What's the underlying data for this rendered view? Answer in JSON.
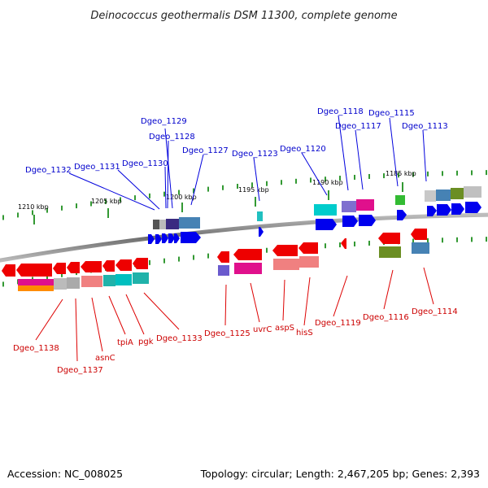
{
  "title": "Deinococcus geothermalis DSM 11300, complete genome",
  "footer": {
    "accession": "Accession: NC_008025",
    "summary": "Topology: circular; Length: 2,467,205 bp; Genes: 2,393"
  },
  "scale_labels": [
    "1210 kbp",
    "1205 kbp",
    "1200 kbp",
    "1195 kbp",
    "1190 kbp",
    "1185 kbp"
  ],
  "top_labels": [
    "Dgeo_1129",
    "Dgeo_1128",
    "Dgeo_1127",
    "Dgeo_1132",
    "Dgeo_1131",
    "Dgeo_1130",
    "Dgeo_1123",
    "Dgeo_1120",
    "Dgeo_1118",
    "Dgeo_1117",
    "Dgeo_1115",
    "Dgeo_1113"
  ],
  "bottom_labels": [
    "Dgeo_1138",
    "Dgeo_1137",
    "asnC",
    "tpiA",
    "pgk",
    "Dgeo_1133",
    "Dgeo_1125",
    "uvrC",
    "aspS",
    "hisS",
    "Dgeo_1119",
    "Dgeo_1116",
    "Dgeo_1114"
  ],
  "colors": {
    "forward_strand": "#0000ee",
    "reverse_strand": "#ee0000",
    "label_forward": "#0000cc",
    "label_reverse": "#cc0000",
    "tick": "#339933",
    "backbone": "#888888"
  }
}
